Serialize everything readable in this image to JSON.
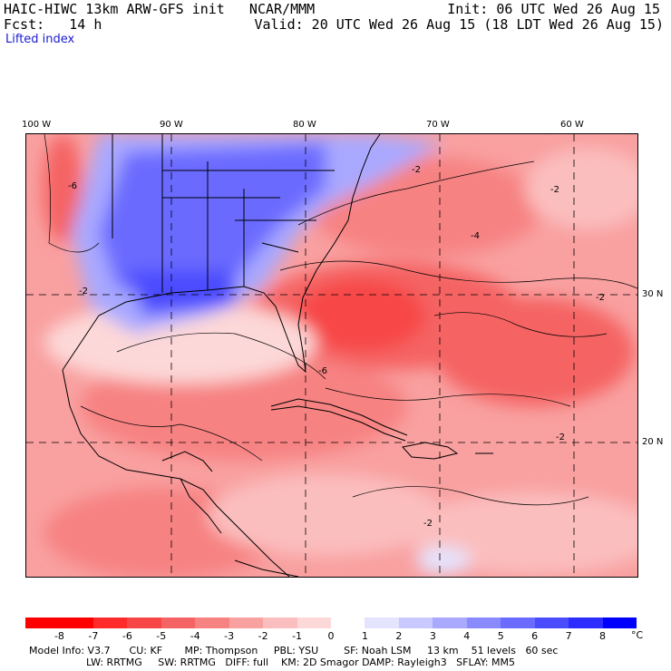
{
  "header": {
    "left_line1": "HAIC-HIWC 13km ARW-GFS init   NCAR/MMM",
    "left_line2": "Fcst:   14 h",
    "right_line1": "Init: 06 UTC Wed 26 Aug 15",
    "right_line2": "Valid: 20 UTC Wed 26 Aug 15 (18 LDT Wed 26 Aug 15)",
    "field": "Lifted index"
  },
  "longitude_labels": [
    "100 W",
    "90 W",
    "80 W",
    "70 W",
    "60 W"
  ],
  "latitude_labels": [
    "30 N",
    "20 N"
  ],
  "contour_labels": [
    "-6",
    "-2",
    "-2",
    "-4",
    "-2",
    "-2",
    "-2",
    "-2",
    "-6"
  ],
  "colorbar": {
    "levels": [
      "-8",
      "-7",
      "-6",
      "-5",
      "-4",
      "-3",
      "-2",
      "-1",
      "0",
      "1",
      "2",
      "3",
      "4",
      "5",
      "6",
      "7",
      "8"
    ],
    "unit": "°C",
    "colors": [
      "#ff0000",
      "#ff2a2a",
      "#f74646",
      "#f56464",
      "#f78282",
      "#f9a0a0",
      "#fbbebe",
      "#fdd8d8",
      "#ffffff",
      "#e4e4ff",
      "#c9c9ff",
      "#a9a9ff",
      "#8a8aff",
      "#6b6bff",
      "#4c4cff",
      "#2d2dff",
      "#0000ff"
    ]
  },
  "model_info": {
    "line1": "Model Info: V3.7      CU: KF       MP: Thompson     PBL: YSU        SF: Noah LSM     13 km    51 levels   60 sec",
    "line2": "LW: RRTMG     SW: RRTMG   DIFF: full    KM: 2D Smagor DAMP: Rayleigh3   SFLAY: MM5"
  }
}
